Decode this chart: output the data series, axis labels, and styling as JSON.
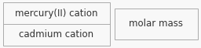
{
  "top_label": "mercury(II) cation",
  "bottom_label": "cadmium cation",
  "right_label": "molar mass",
  "bg_color": "#f8f8f8",
  "box_edge_color": "#aaaaaa",
  "divider_color": "#aaaaaa",
  "text_color": "#333333",
  "font_size": 8.5,
  "fig_width": 2.56,
  "fig_height": 0.62,
  "dpi": 100
}
